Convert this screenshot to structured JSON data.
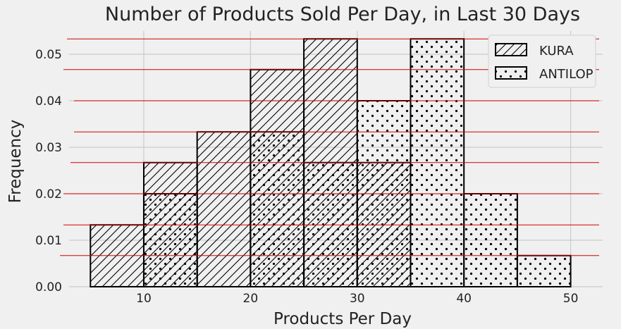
{
  "chart_data": {
    "type": "bar",
    "title": "Number of Products Sold Per Day, in Last 30 Days",
    "xlabel": "Products Per Day",
    "ylabel": "Frequency",
    "xlim": [
      3,
      53
    ],
    "ylim": [
      0,
      0.055
    ],
    "xticks": [
      10,
      20,
      30,
      40,
      50
    ],
    "yticks": [
      0.0,
      0.01,
      0.02,
      0.03,
      0.04,
      0.05
    ],
    "ytick_labels": [
      "0.00",
      "0.01",
      "0.02",
      "0.03",
      "0.04",
      "0.05"
    ],
    "bin_width": 5,
    "grid": true,
    "legend_position": "top-right",
    "series": [
      {
        "name": "KURA",
        "hatch": "diagonal",
        "bins": [
          {
            "x0": 5,
            "x1": 10,
            "value": 0.0133
          },
          {
            "x0": 10,
            "x1": 15,
            "value": 0.0267
          },
          {
            "x0": 15,
            "x1": 20,
            "value": 0.0333
          },
          {
            "x0": 20,
            "x1": 25,
            "value": 0.0467
          },
          {
            "x0": 25,
            "x1": 30,
            "value": 0.0533
          },
          {
            "x0": 30,
            "x1": 35,
            "value": 0.0267
          }
        ]
      },
      {
        "name": "ANTILOP",
        "hatch": "dots",
        "bins": [
          {
            "x0": 10,
            "x1": 15,
            "value": 0.02
          },
          {
            "x0": 20,
            "x1": 25,
            "value": 0.0333
          },
          {
            "x0": 25,
            "x1": 30,
            "value": 0.0267
          },
          {
            "x0": 30,
            "x1": 35,
            "value": 0.04
          },
          {
            "x0": 35,
            "x1": 40,
            "value": 0.0533
          },
          {
            "x0": 40,
            "x1": 45,
            "value": 0.02
          },
          {
            "x0": 45,
            "x1": 50,
            "value": 0.0067
          }
        ]
      }
    ],
    "reference_lines": [
      0.0067,
      0.0133,
      0.02,
      0.0267,
      0.0333,
      0.04,
      0.0467,
      0.0533
    ],
    "colors": {
      "background": "#f0f0f0",
      "grid": "#cbcbcb",
      "bar_edge": "#000000",
      "bar_fill": "#f0f0f0",
      "reference_line": "#d40000",
      "text": "#222222"
    }
  }
}
